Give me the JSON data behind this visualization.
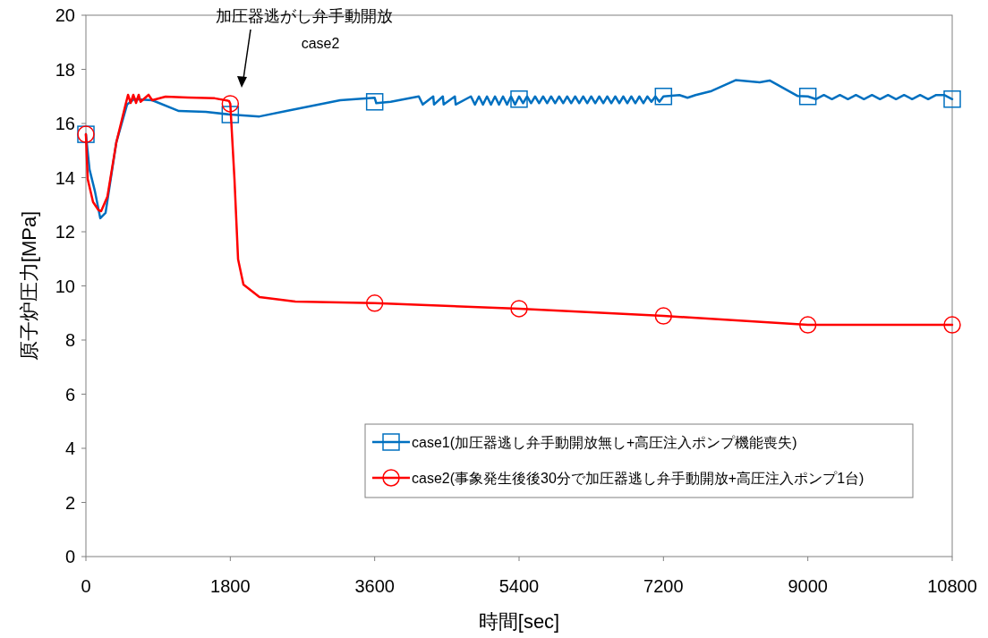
{
  "chart_data": {
    "type": "line",
    "xlabel": "時間[sec]",
    "ylabel": "原子炉圧力[MPa]",
    "xlim": [
      0,
      10800
    ],
    "xticks": [
      0,
      1800,
      3600,
      5400,
      7200,
      9000,
      10800
    ],
    "ylim": [
      0,
      20
    ],
    "yticks": [
      0,
      2,
      4,
      6,
      8,
      10,
      12,
      14,
      16,
      18,
      20
    ],
    "grid": false,
    "legend": "bottom right",
    "annotations": [
      "加圧器逃がし弁手動開放",
      "case2"
    ],
    "series": [
      {
        "name": "case1(加圧器逃し弁手動開放無し+高圧注入ポンプ機能喪失)",
        "color": "#0070c0",
        "marker": "none",
        "x": [
          0,
          45,
          112,
          179,
          245,
          379,
          513,
          602,
          826,
          1160,
          1495,
          1800,
          2164,
          2500,
          3170,
          3600,
          3620,
          3800,
          4150,
          4200,
          4330,
          4340,
          4450,
          4460,
          4600,
          4610,
          4800,
          4850,
          4900,
          4950,
          5000,
          5050,
          5100,
          5150,
          5200,
          5250,
          5300,
          5350,
          5400,
          5450,
          5500,
          5550,
          5600,
          5650,
          5700,
          5750,
          5800,
          5850,
          5900,
          5950,
          6000,
          6050,
          6100,
          6150,
          6200,
          6250,
          6300,
          6350,
          6400,
          6450,
          6500,
          6550,
          6600,
          6650,
          6700,
          6750,
          6800,
          6850,
          6900,
          6950,
          7000,
          7050,
          7100,
          7150,
          7200,
          7400,
          7500,
          7600,
          7800,
          8100,
          8400,
          8524,
          8870,
          9000,
          9100,
          9200,
          9300,
          9400,
          9500,
          9600,
          9700,
          9800,
          9900,
          10000,
          10100,
          10200,
          10300,
          10400,
          10500,
          10600,
          10700,
          10800
        ],
        "values": [
          15.6,
          14.3,
          13.5,
          12.5,
          12.7,
          15.3,
          16.7,
          16.9,
          16.86,
          16.46,
          16.43,
          16.33,
          16.26,
          16.46,
          16.86,
          16.95,
          16.75,
          16.8,
          17.0,
          16.7,
          17.0,
          16.7,
          17.0,
          16.7,
          17.0,
          16.7,
          17.0,
          16.7,
          17.0,
          16.7,
          17.0,
          16.7,
          17.0,
          16.7,
          17.0,
          16.7,
          17.0,
          16.7,
          17.0,
          16.75,
          17.0,
          16.75,
          17.0,
          16.75,
          17.0,
          16.75,
          17.0,
          16.75,
          17.0,
          16.75,
          17.0,
          16.75,
          17.0,
          16.75,
          17.0,
          16.75,
          17.0,
          16.75,
          17.0,
          16.75,
          17.0,
          16.75,
          17.0,
          16.75,
          17.0,
          16.75,
          17.0,
          16.75,
          17.0,
          16.75,
          17.0,
          16.8,
          17.0,
          16.8,
          17.0,
          17.05,
          16.95,
          17.05,
          17.2,
          17.6,
          17.52,
          17.59,
          17.02,
          17.0,
          16.9,
          17.05,
          16.9,
          17.05,
          16.9,
          17.05,
          16.9,
          17.05,
          16.9,
          17.05,
          16.9,
          17.05,
          16.9,
          17.05,
          16.9,
          17.05,
          17.05,
          16.9
        ]
      },
      {
        "type": "scatter",
        "color": "#0070c0",
        "marker": "square",
        "x": [
          0,
          1800,
          3600,
          5400,
          7200,
          9000,
          10800
        ],
        "values": [
          15.6,
          16.33,
          16.8,
          16.9,
          17.0,
          17.0,
          16.9
        ]
      },
      {
        "name": "case2(事象発生後後30分で加圧器逃し弁手動開放+高圧注入ポンプ1台)",
        "color": "#ff0000",
        "marker": "none",
        "x": [
          0,
          22,
          89,
          156,
          190,
          268,
          379,
          491,
          525,
          558,
          591,
          625,
          658,
          681,
          781,
          826,
          993,
          1272,
          1606,
          1785,
          1800,
          1852,
          1897,
          1964,
          2164,
          2611,
          3600,
          5400,
          7200,
          9000,
          10800
        ],
        "values": [
          15.6,
          13.95,
          13.1,
          12.8,
          12.76,
          13.3,
          15.3,
          16.66,
          17.06,
          16.76,
          17.06,
          16.76,
          17.06,
          16.8,
          17.06,
          16.86,
          16.99,
          16.96,
          16.93,
          16.83,
          16.73,
          13.95,
          10.98,
          10.05,
          9.59,
          9.42,
          9.36,
          9.16,
          8.89,
          8.56,
          8.56
        ]
      },
      {
        "type": "scatter",
        "color": "#ff0000",
        "marker": "circle",
        "x": [
          0,
          1800,
          3600,
          5400,
          7200,
          9000,
          10800
        ],
        "values": [
          15.6,
          16.73,
          9.36,
          9.16,
          8.89,
          8.56,
          8.56
        ]
      }
    ]
  }
}
